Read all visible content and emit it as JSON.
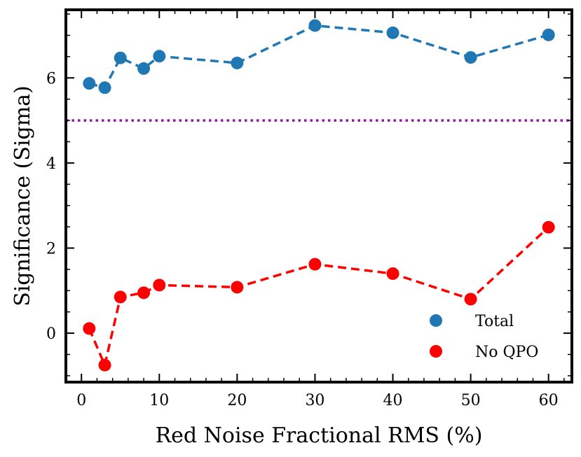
{
  "chart_data": {
    "type": "line",
    "title": "",
    "xlabel": "Red Noise Fractional RMS (%)",
    "ylabel": "Significance (Sigma)",
    "xlim": [
      -2,
      63
    ],
    "ylim": [
      -1.15,
      7.6
    ],
    "xticks": [
      0,
      10,
      20,
      30,
      40,
      50,
      60
    ],
    "yticks": [
      0,
      2,
      4,
      6
    ],
    "x": [
      1,
      3,
      5,
      8,
      10,
      20,
      30,
      40,
      50,
      60
    ],
    "series": [
      {
        "name": "Total",
        "color": "#1f77b4",
        "values": [
          5.87,
          5.77,
          6.47,
          6.22,
          6.51,
          6.35,
          7.23,
          7.06,
          6.48,
          7.01
        ]
      },
      {
        "name": "No QPO",
        "color": "#ff0000",
        "values": [
          0.11,
          -0.75,
          0.85,
          0.95,
          1.13,
          1.08,
          1.62,
          1.4,
          0.8,
          2.49
        ]
      }
    ],
    "reference_line": {
      "y": 5,
      "style": "dotted",
      "color": "#8b1a9c"
    },
    "grid": false,
    "legend": {
      "position": "lower-right"
    }
  }
}
